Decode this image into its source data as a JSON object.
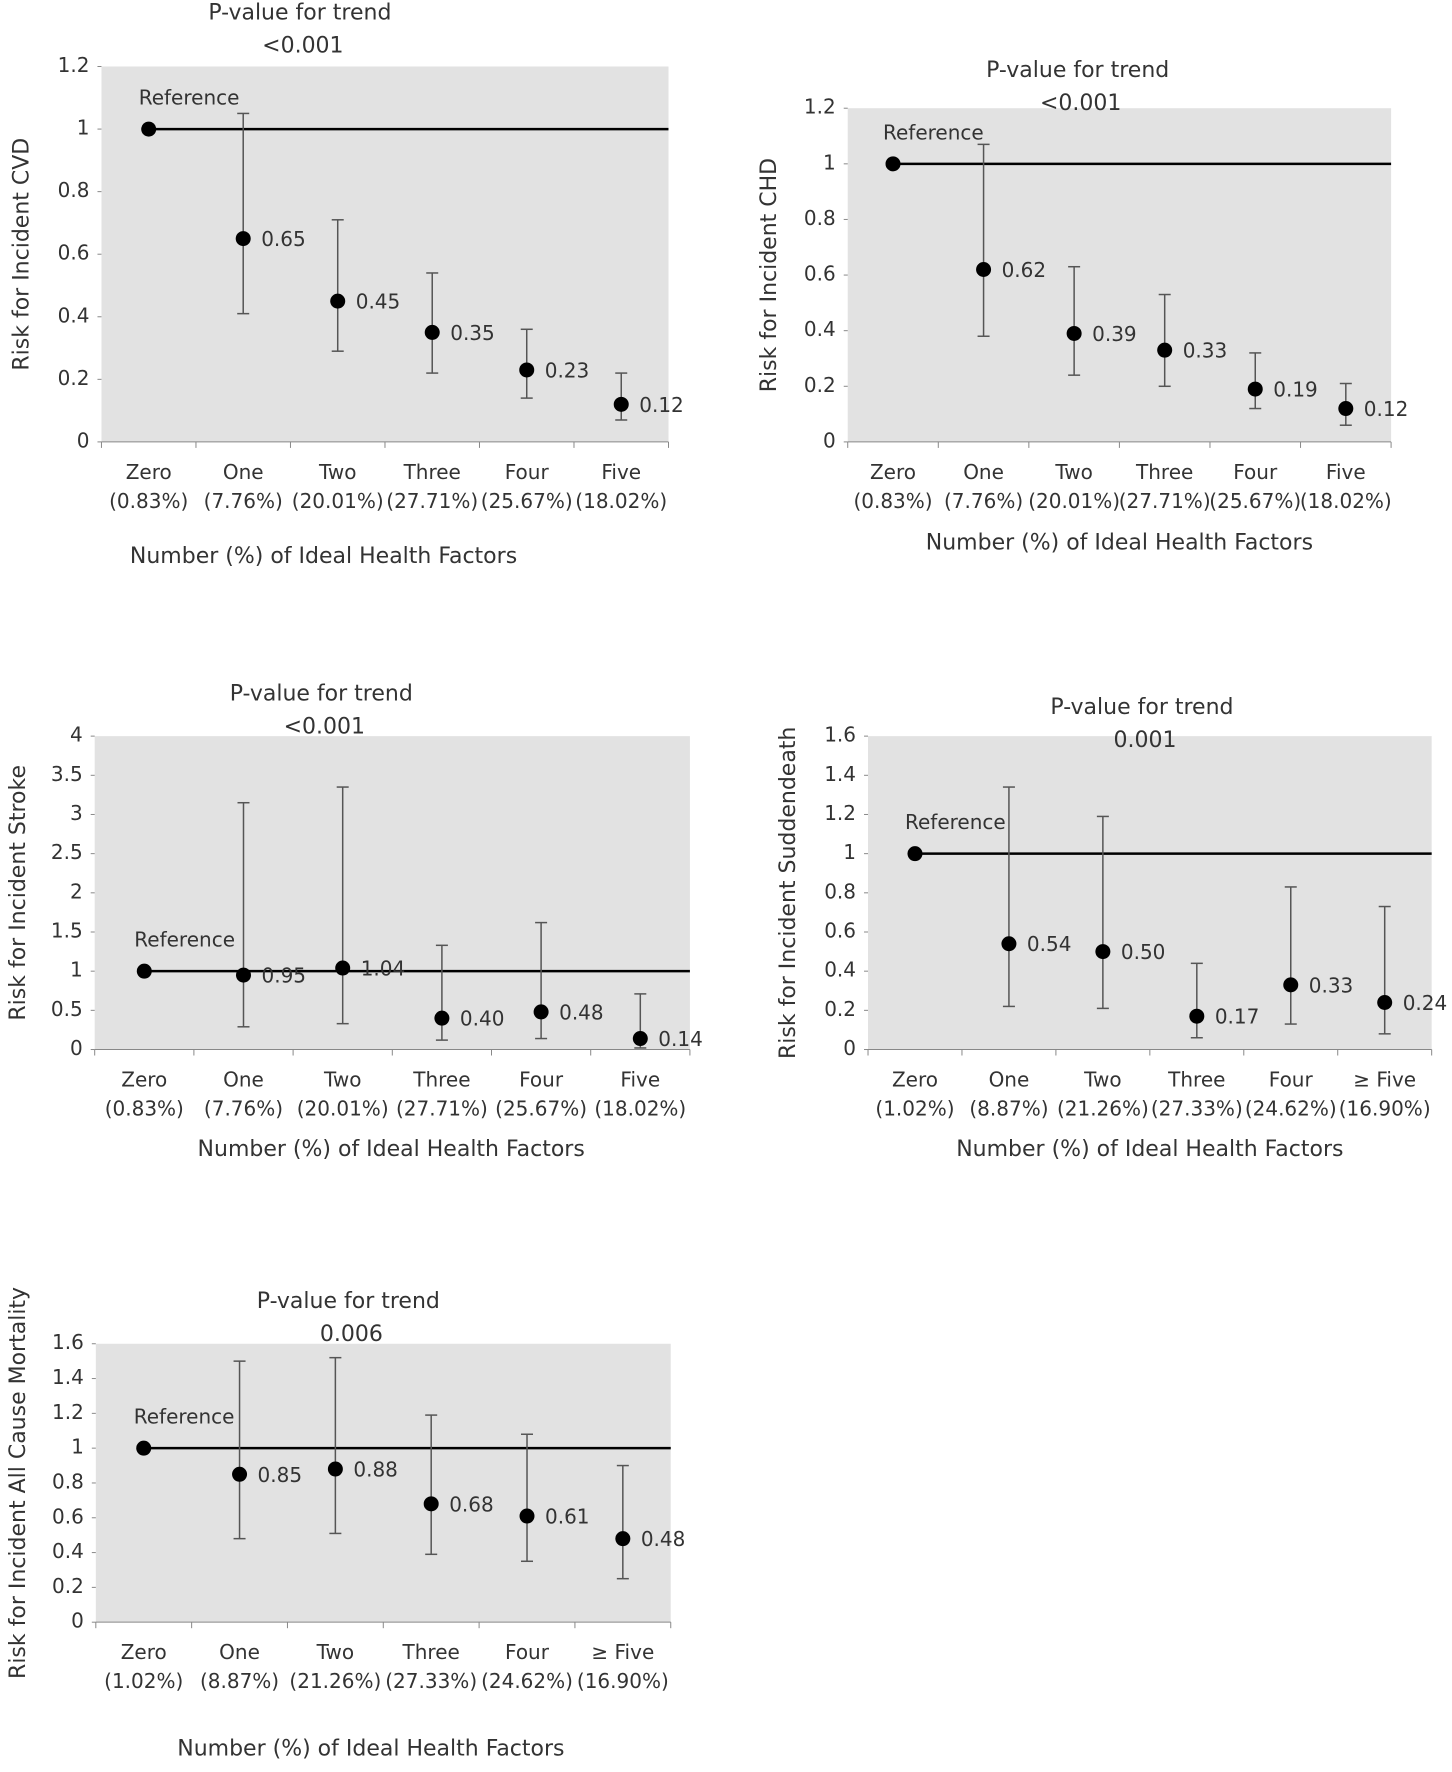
{
  "chart_data": [
    {
      "type": "errorbar",
      "title": "P-value for trend",
      "subtitle": "<0.001",
      "x_label": "Number (%) of Ideal Health Factors",
      "y_label": "Risk for Incident CVD",
      "categories": [
        [
          "Zero",
          "(0.83%)"
        ],
        [
          "One",
          "(7.76%)"
        ],
        [
          "Two",
          "(20.01%)"
        ],
        [
          "Three",
          "(27.71%)"
        ],
        [
          "Four",
          "(25.67%)"
        ],
        [
          "Five",
          "(18.02%)"
        ]
      ],
      "values": [
        1,
        0.65,
        0.45,
        0.35,
        0.23,
        0.12
      ],
      "value_labels": [
        null,
        "0.65",
        "0.45",
        "0.35",
        "0.23",
        "0.12"
      ],
      "lower": [
        null,
        0.41,
        0.29,
        0.22,
        0.14,
        0.07
      ],
      "upper": [
        null,
        1.05,
        0.71,
        0.54,
        0.36,
        0.22
      ],
      "reference_line": 1,
      "reference_label": "Reference",
      "ylim": [
        0,
        1.2
      ],
      "yticks": [
        0,
        0.2,
        0.4,
        0.6,
        0.8,
        1,
        1.2
      ],
      "color": "#000000"
    },
    {
      "type": "errorbar",
      "title": "P-value for trend",
      "subtitle": "<0.001",
      "x_label": "Number (%) of Ideal Health Factors",
      "y_label": "Risk for Incident CHD",
      "categories": [
        [
          "Zero",
          "(0.83%)"
        ],
        [
          "One",
          "(7.76%)"
        ],
        [
          "Two",
          "(20.01%)"
        ],
        [
          "Three",
          "(27.71%)"
        ],
        [
          "Four",
          "(25.67%)"
        ],
        [
          "Five",
          "(18.02%)"
        ]
      ],
      "values": [
        1,
        0.62,
        0.39,
        0.33,
        0.19,
        0.12
      ],
      "value_labels": [
        null,
        "0.62",
        "0.39",
        "0.33",
        "0.19",
        "0.12"
      ],
      "lower": [
        null,
        0.38,
        0.24,
        0.2,
        0.12,
        0.06
      ],
      "upper": [
        null,
        1.07,
        0.63,
        0.53,
        0.32,
        0.21
      ],
      "reference_line": 1,
      "reference_label": "Reference",
      "ylim": [
        0,
        1.2
      ],
      "yticks": [
        0,
        0.2,
        0.4,
        0.6,
        0.8,
        1,
        1.2
      ],
      "color": "#000000"
    },
    {
      "type": "errorbar",
      "title": "P-value for trend",
      "subtitle": "<0.001",
      "x_label": "Number (%) of Ideal Health Factors",
      "y_label": "Risk for Incident Stroke",
      "categories": [
        [
          "Zero",
          "(0.83%)"
        ],
        [
          "One",
          "(7.76%)"
        ],
        [
          "Two",
          "(20.01%)"
        ],
        [
          "Three",
          "(27.71%)"
        ],
        [
          "Four",
          "(25.67%)"
        ],
        [
          "Five",
          "(18.02%)"
        ]
      ],
      "values": [
        1,
        0.95,
        1.04,
        0.4,
        0.48,
        0.14
      ],
      "value_labels": [
        null,
        "0.95",
        "1.04",
        "0.40",
        "0.48",
        "0.14"
      ],
      "lower": [
        null,
        0.29,
        0.33,
        0.12,
        0.14,
        0.02
      ],
      "upper": [
        null,
        3.15,
        3.35,
        1.33,
        1.62,
        0.71
      ],
      "reference_line": 1,
      "reference_label": "Reference",
      "ylim": [
        0,
        4
      ],
      "yticks": [
        0,
        0.5,
        1,
        1.5,
        2,
        2.5,
        3,
        3.5,
        4
      ],
      "color": "#000000"
    },
    {
      "type": "errorbar",
      "title": "P-value for trend",
      "subtitle": "0.001",
      "x_label": "Number (%) of Ideal Health Factors",
      "y_label": "Risk for Incident Suddendeath",
      "categories": [
        [
          "Zero",
          "(1.02%)"
        ],
        [
          "One",
          "(8.87%)"
        ],
        [
          "Two",
          "(21.26%)"
        ],
        [
          "Three",
          "(27.33%)"
        ],
        [
          "Four",
          "(24.62%)"
        ],
        [
          "≥ Five",
          "(16.90%)"
        ]
      ],
      "values": [
        1,
        0.54,
        0.5,
        0.17,
        0.33,
        0.24
      ],
      "value_labels": [
        null,
        "0.54",
        "0.50",
        "0.17",
        "0.33",
        "0.24"
      ],
      "lower": [
        null,
        0.22,
        0.21,
        0.06,
        0.13,
        0.08
      ],
      "upper": [
        null,
        1.34,
        1.19,
        0.44,
        0.83,
        0.73
      ],
      "reference_line": 1,
      "reference_label": "Reference",
      "ylim": [
        0,
        1.6
      ],
      "yticks": [
        0,
        0.2,
        0.4,
        0.6,
        0.8,
        1,
        1.2,
        1.4,
        1.6
      ],
      "color": "#000000"
    },
    {
      "type": "errorbar",
      "title": "P-value for trend",
      "subtitle": "0.006",
      "x_label": "Number (%) of Ideal Health Factors",
      "y_label": "Risk for Incident All Cause Mortality",
      "categories": [
        [
          "Zero",
          "(1.02%)"
        ],
        [
          "One",
          "(8.87%)"
        ],
        [
          "Two",
          "(21.26%)"
        ],
        [
          "Three",
          "(27.33%)"
        ],
        [
          "Four",
          "(24.62%)"
        ],
        [
          "≥ Five",
          "(16.90%)"
        ]
      ],
      "values": [
        1,
        0.85,
        0.88,
        0.68,
        0.61,
        0.48
      ],
      "value_labels": [
        null,
        "0.85",
        "0.88",
        "0.68",
        "0.61",
        "0.48"
      ],
      "lower": [
        null,
        0.48,
        0.51,
        0.39,
        0.35,
        0.25
      ],
      "upper": [
        null,
        1.5,
        1.52,
        1.19,
        1.08,
        0.9
      ],
      "reference_line": 1,
      "reference_label": "Reference",
      "ylim": [
        0,
        1.6
      ],
      "yticks": [
        0,
        0.2,
        0.4,
        0.6,
        0.8,
        1,
        1.2,
        1.4,
        1.6
      ],
      "color": "#000000"
    }
  ]
}
